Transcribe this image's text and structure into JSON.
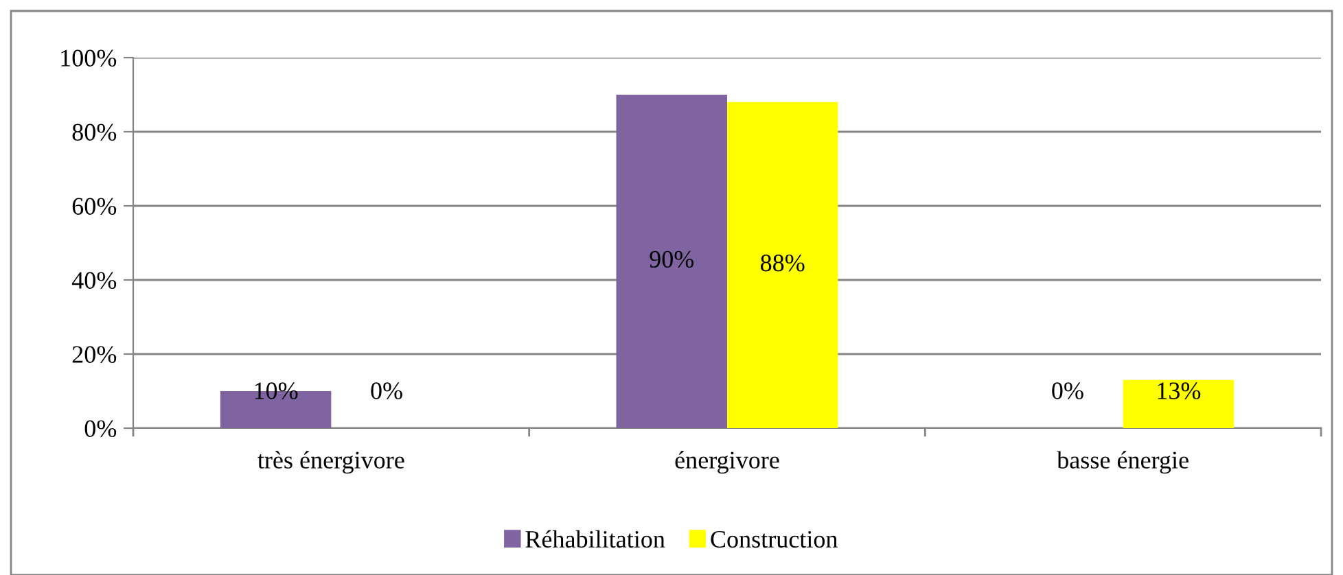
{
  "chart_data": {
    "type": "bar",
    "categories": [
      "très énergivore",
      "énergivore",
      "basse énergie"
    ],
    "series": [
      {
        "name": "Réhabilitation",
        "color": "#8064a2",
        "values": [
          10,
          90,
          0
        ]
      },
      {
        "name": "Construction",
        "color": "#ffff00",
        "values": [
          0,
          88,
          13
        ]
      }
    ],
    "ylim": [
      0,
      100
    ],
    "yticks": [
      {
        "value": 0,
        "label": "0%"
      },
      {
        "value": 20,
        "label": "20%"
      },
      {
        "value": 40,
        "label": "40%"
      },
      {
        "value": 60,
        "label": "60%"
      },
      {
        "value": 80,
        "label": "80%"
      },
      {
        "value": 100,
        "label": "100%"
      }
    ],
    "grid": "y",
    "legend": "bottom",
    "value_labels": [
      [
        "10%",
        "90%",
        "0%"
      ],
      [
        "0%",
        "88%",
        "13%"
      ]
    ]
  }
}
